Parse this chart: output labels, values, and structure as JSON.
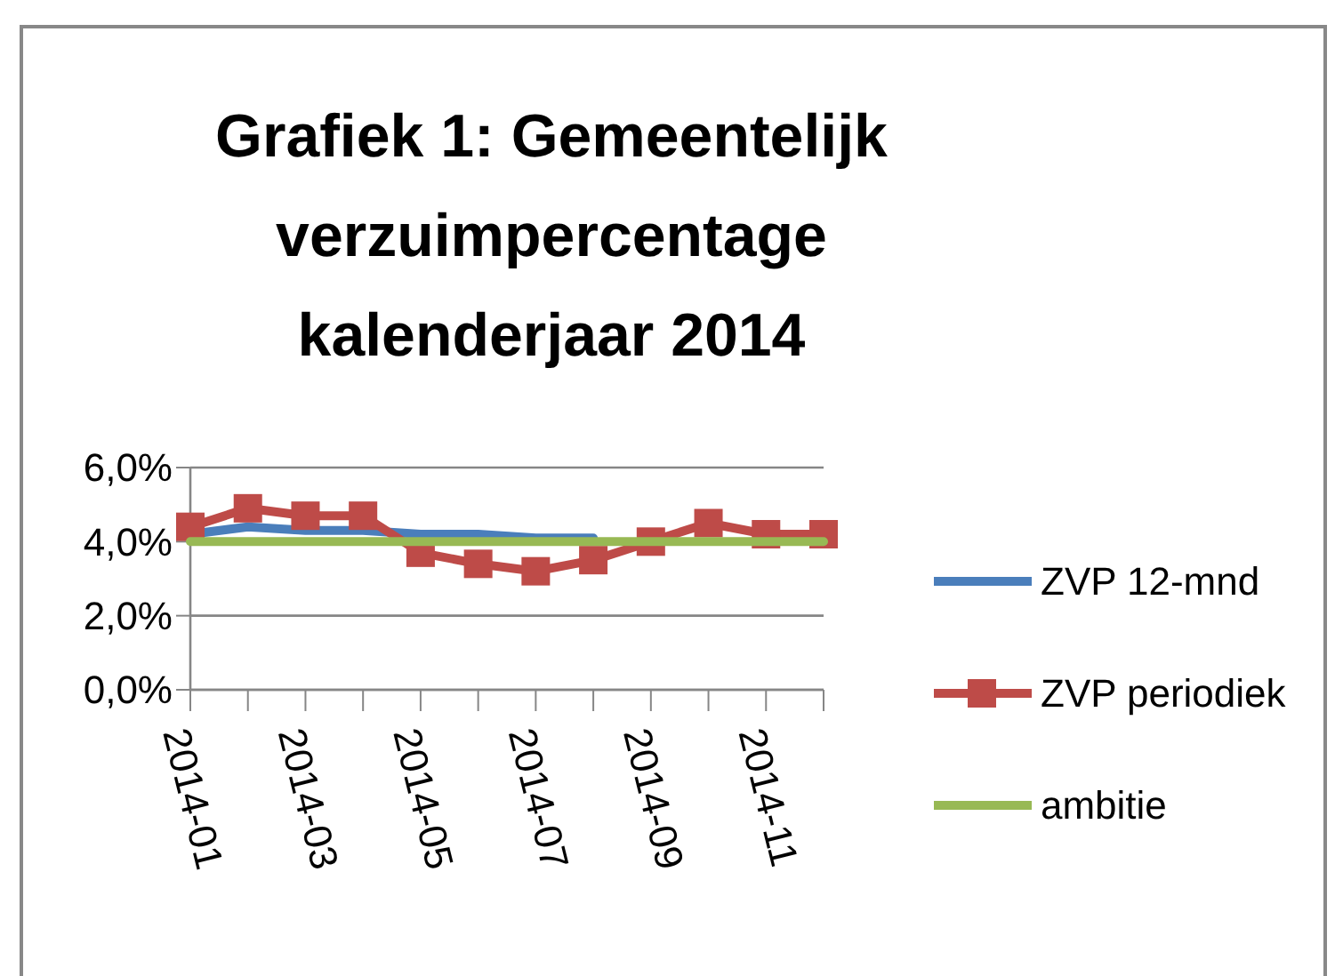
{
  "chart_data": {
    "type": "line",
    "title": "Grafiek 1: Gemeentelijk verzuimpercentage kalenderjaar 2014",
    "categories": [
      "2014-01",
      null,
      "2014-03",
      null,
      "2014-05",
      null,
      "2014-07",
      null,
      "2014-09",
      null,
      "2014-11",
      null
    ],
    "series": [
      {
        "name": "ZVP 12-mnd",
        "color": "#4a7ebb",
        "marker": "none",
        "values": [
          4.2,
          4.4,
          4.3,
          4.3,
          4.2,
          4.2,
          4.1,
          4.1,
          null,
          null,
          null,
          null
        ]
      },
      {
        "name": "ZVP periodiek",
        "color": "#be4b48",
        "marker": "square",
        "values": [
          4.4,
          4.9,
          4.7,
          4.7,
          3.7,
          3.4,
          3.2,
          3.5,
          4.0,
          4.5,
          4.2,
          4.2
        ]
      },
      {
        "name": "ambitie",
        "color": "#98b954",
        "marker": "none",
        "values": [
          4.0,
          4.0,
          4.0,
          4.0,
          4.0,
          4.0,
          4.0,
          4.0,
          4.0,
          4.0,
          4.0,
          4.0
        ]
      }
    ],
    "ylim": [
      0,
      6
    ],
    "yticks": [
      {
        "value": 0,
        "label": "0,0%"
      },
      {
        "value": 2,
        "label": "2,0%"
      },
      {
        "value": 4,
        "label": "4,0%"
      },
      {
        "value": 6,
        "label": "6,0%"
      }
    ],
    "grid": "y",
    "legend": "right",
    "line_style": "solid"
  }
}
